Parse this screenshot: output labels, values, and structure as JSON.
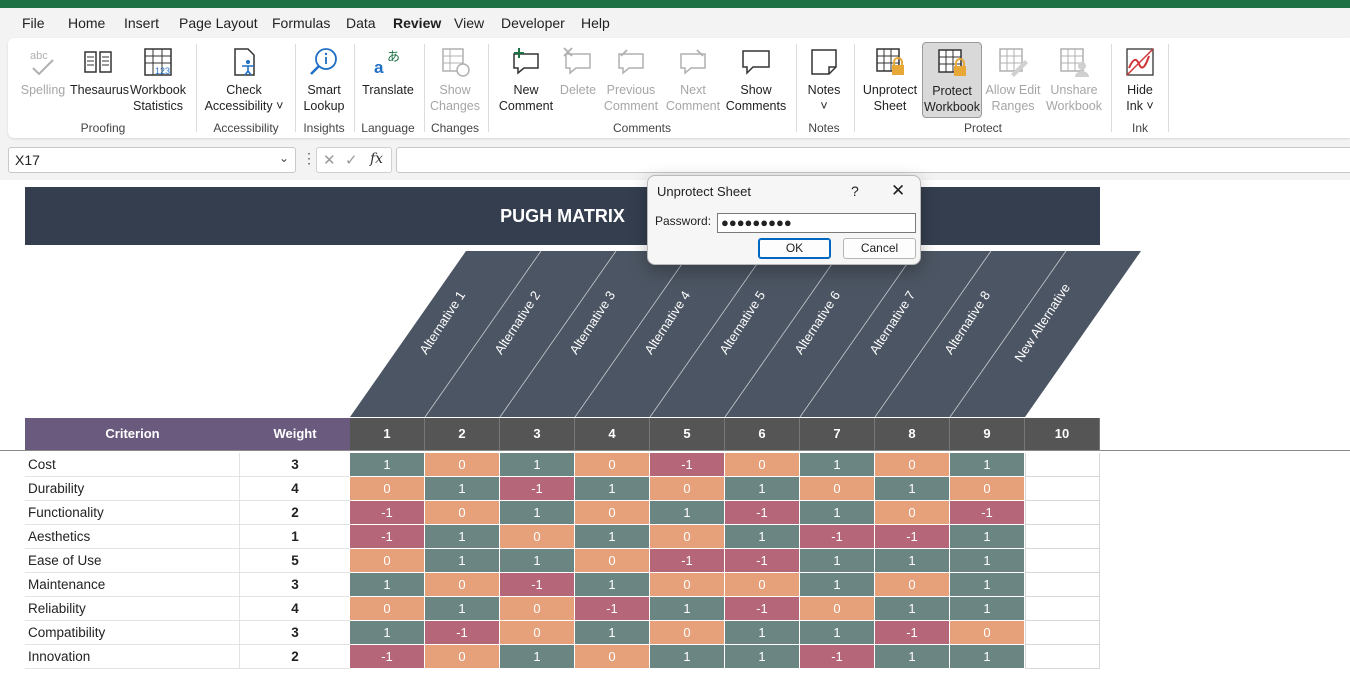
{
  "menu": [
    "File",
    "Home",
    "Insert",
    "Page Layout",
    "Formulas",
    "Data",
    "Review",
    "View",
    "Developer",
    "Help"
  ],
  "active_menu": "Review",
  "ribbon": {
    "spelling": "Spelling",
    "thesaurus": "Thesaurus",
    "workbook_statistics_1": "Workbook",
    "workbook_statistics_2": "Statistics",
    "check_accessibility_1": "Check",
    "check_accessibility_2": "Accessibility",
    "smart_lookup_1": "Smart",
    "smart_lookup_2": "Lookup",
    "translate": "Translate",
    "show_changes_1": "Show",
    "show_changes_2": "Changes",
    "new_comment_1": "New",
    "new_comment_2": "Comment",
    "delete": "Delete",
    "previous_comment_1": "Previous",
    "previous_comment_2": "Comment",
    "next_comment_1": "Next",
    "next_comment_2": "Comment",
    "show_comments_1": "Show",
    "show_comments_2": "Comments",
    "notes": "Notes",
    "unprotect_sheet_1": "Unprotect",
    "unprotect_sheet_2": "Sheet",
    "protect_workbook_1": "Protect",
    "protect_workbook_2": "Workbook",
    "allow_edit_ranges_1": "Allow Edit",
    "allow_edit_ranges_2": "Ranges",
    "unshare_workbook_1": "Unshare",
    "unshare_workbook_2": "Workbook",
    "hide_ink_1": "Hide",
    "hide_ink_2": "Ink",
    "groups": {
      "proofing": "Proofing",
      "accessibility": "Accessibility",
      "insights": "Insights",
      "language": "Language",
      "changes": "Changes",
      "comments": "Comments",
      "notes": "Notes",
      "protect": "Protect",
      "ink": "Ink"
    }
  },
  "formula_bar": {
    "name_box": "X17",
    "fx": "fx",
    "formula": ""
  },
  "sheet": {
    "title": "PUGH MATRIX",
    "alternatives": [
      "Alternative 1",
      "Alternative 2",
      "Alternative 3",
      "Alternative 4",
      "Alternative 5",
      "Alternative 6",
      "Alternative 7",
      "Alternative 8",
      "New Alternative"
    ],
    "header_criterion": "Criterion",
    "header_weight": "Weight",
    "column_numbers": [
      "1",
      "2",
      "3",
      "4",
      "5",
      "6",
      "7",
      "8",
      "9",
      "10"
    ],
    "rows": [
      {
        "criterion": "Cost",
        "weight": "3",
        "scores": [
          "1",
          "0",
          "1",
          "0",
          "-1",
          "0",
          "1",
          "0",
          "1"
        ]
      },
      {
        "criterion": "Durability",
        "weight": "4",
        "scores": [
          "0",
          "1",
          "-1",
          "1",
          "0",
          "1",
          "0",
          "1",
          "0"
        ]
      },
      {
        "criterion": "Functionality",
        "weight": "2",
        "scores": [
          "-1",
          "0",
          "1",
          "0",
          "1",
          "-1",
          "1",
          "0",
          "-1"
        ]
      },
      {
        "criterion": "Aesthetics",
        "weight": "1",
        "scores": [
          "-1",
          "1",
          "0",
          "1",
          "0",
          "1",
          "-1",
          "-1",
          "1"
        ]
      },
      {
        "criterion": "Ease of Use",
        "weight": "5",
        "scores": [
          "0",
          "1",
          "1",
          "0",
          "-1",
          "-1",
          "1",
          "1",
          "1"
        ]
      },
      {
        "criterion": "Maintenance",
        "weight": "3",
        "scores": [
          "1",
          "0",
          "-1",
          "1",
          "0",
          "0",
          "1",
          "0",
          "1"
        ]
      },
      {
        "criterion": "Reliability",
        "weight": "4",
        "scores": [
          "0",
          "1",
          "0",
          "-1",
          "1",
          "-1",
          "0",
          "1",
          "1"
        ]
      },
      {
        "criterion": "Compatibility",
        "weight": "3",
        "scores": [
          "1",
          "-1",
          "0",
          "1",
          "0",
          "1",
          "1",
          "-1",
          "0"
        ]
      },
      {
        "criterion": "Innovation",
        "weight": "2",
        "scores": [
          "-1",
          "0",
          "1",
          "0",
          "1",
          "1",
          "-1",
          "1",
          "1"
        ]
      }
    ]
  },
  "dialog": {
    "title": "Unprotect Sheet",
    "help": "?",
    "close": "✕",
    "password_label": "Password:",
    "password_value": "●●●●●●●●●",
    "ok": "OK",
    "cancel": "Cancel"
  },
  "colors": {
    "excel_green": "#1e7145",
    "banner": "#343e4e",
    "header_purple": "#6a5a7e",
    "header_gray": "#555555",
    "score_positive": "#6b8582",
    "score_zero": "#e6a07a",
    "score_negative": "#b66679"
  }
}
